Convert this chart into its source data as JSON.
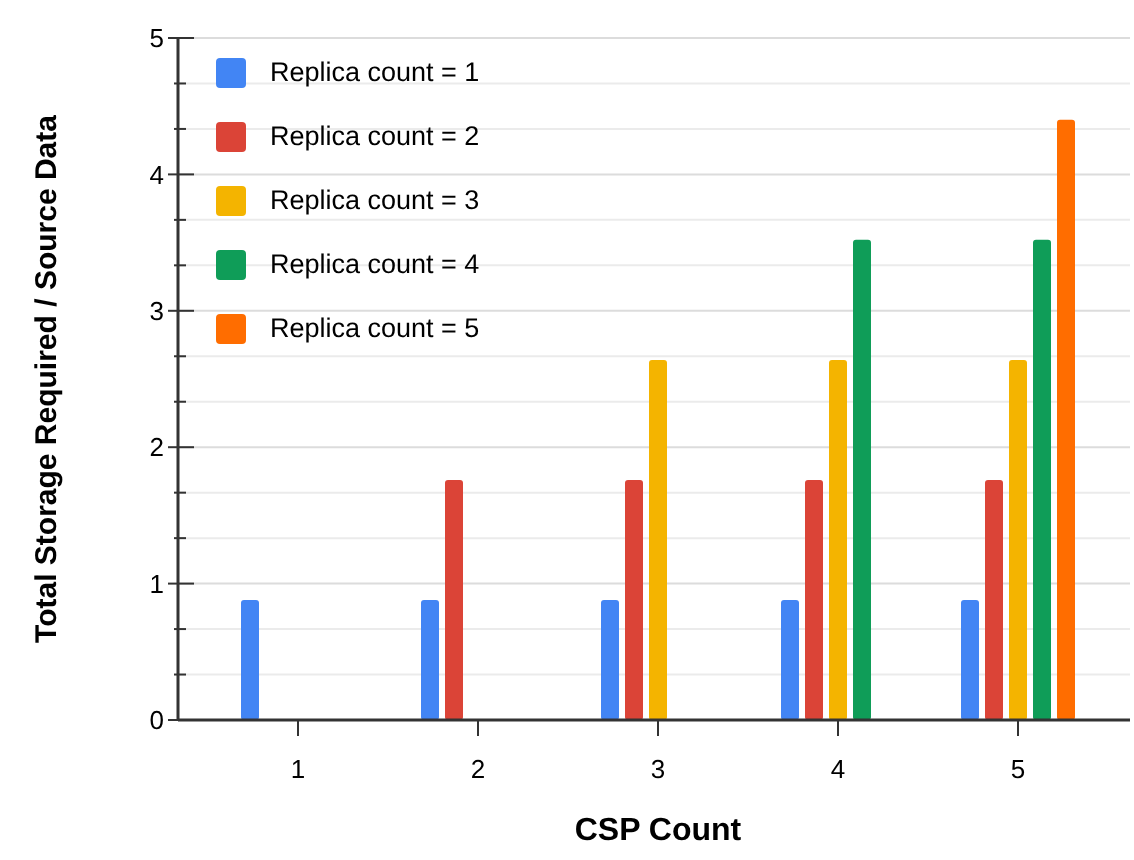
{
  "chart_data": {
    "type": "bar",
    "xlabel": "CSP Count",
    "ylabel": "Total Storage Required / Source Data",
    "categories": [
      "1",
      "2",
      "3",
      "4",
      "5"
    ],
    "series": [
      {
        "name": "Replica count = 1",
        "color": "#4285f4",
        "values": [
          0.88,
          0.88,
          0.88,
          0.88,
          0.88
        ]
      },
      {
        "name": "Replica count = 2",
        "color": "#db4437",
        "values": [
          null,
          1.76,
          1.76,
          1.76,
          1.76
        ]
      },
      {
        "name": "Replica count = 3",
        "color": "#f4b400",
        "values": [
          null,
          null,
          2.64,
          2.64,
          2.64
        ]
      },
      {
        "name": "Replica count = 4",
        "color": "#0f9d58",
        "values": [
          null,
          null,
          null,
          3.52,
          3.52
        ]
      },
      {
        "name": "Replica count = 5",
        "color": "#ff6d00",
        "values": [
          null,
          null,
          null,
          null,
          4.4
        ]
      }
    ],
    "ylim": [
      0,
      5
    ],
    "yticks": [
      0,
      1,
      2,
      3,
      4,
      5
    ],
    "grid": "y",
    "legend": "top left"
  }
}
